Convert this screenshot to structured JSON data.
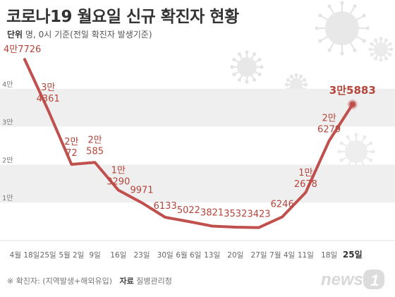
{
  "title": "코로나19 월요일 신규 확진자 현황",
  "unit_label": "단위",
  "unit_text": "명, 0시 기준(전일 확진자 발생기준)",
  "footnote": "※ 확진자: (지역발생+해외유입)",
  "source_label": "자료",
  "source_text": "질병관리청",
  "logo_text": "news1",
  "chart_data": {
    "type": "line",
    "title": "코로나19 월요일 신규 확진자 현황",
    "xlabel": "",
    "ylabel": "",
    "ylim": [
      0,
      50000
    ],
    "y_ticks": [
      {
        "value": 10000,
        "label": "1만"
      },
      {
        "value": 20000,
        "label": "2만"
      },
      {
        "value": 30000,
        "label": "3만"
      },
      {
        "value": 40000,
        "label": "4만"
      }
    ],
    "grid": "alternating horizontal bands",
    "categories": [
      "4월 18일",
      "25일",
      "5월 2일",
      "9일",
      "16일",
      "23일",
      "30일",
      "6월 6일",
      "13일",
      "20일",
      "27일",
      "7월 4일",
      "11일",
      "18일",
      "25일"
    ],
    "values": [
      47726,
      34361,
      20072,
      20585,
      13290,
      9971,
      6133,
      5022,
      3821,
      3532,
      3423,
      6246,
      12678,
      26279,
      35883
    ],
    "value_labels": [
      [
        "4만7726"
      ],
      [
        "3만",
        "4361"
      ],
      [
        "2만",
        "72"
      ],
      [
        "2만",
        "585"
      ],
      [
        "1만",
        "3290"
      ],
      [
        "9971"
      ],
      [
        "6133"
      ],
      [
        "5022"
      ],
      [
        "3821"
      ],
      [
        "3532"
      ],
      [
        "3423"
      ],
      [
        "6246"
      ],
      [
        "1만",
        "2678"
      ],
      [
        "2만",
        "6279"
      ],
      [
        "3만5883"
      ]
    ],
    "colors": {
      "line": "#c0504d",
      "label": "#b5443a",
      "highlight": "#c0504d"
    }
  }
}
